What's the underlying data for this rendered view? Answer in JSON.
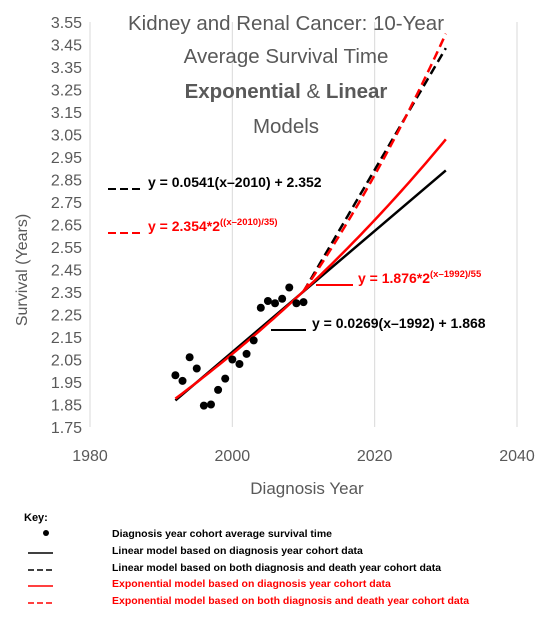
{
  "chart_data": {
    "type": "scatter",
    "title_lines": [
      "Kidney and Renal Cancer: 10-Year",
      "Average Survival Time"
    ],
    "subtitle_parts": {
      "exponential": "Exponential",
      "amp": " & ",
      "linear": "Linear"
    },
    "subtitle_models": "Models",
    "xlabel": "Diagnosis Year",
    "ylabel": "Survival (Years)",
    "xlim": [
      1980,
      2040
    ],
    "ylim": [
      1.75,
      3.55
    ],
    "x_ticks": [
      1980,
      2000,
      2020,
      2040
    ],
    "y_ticks": [
      "1.75",
      "1.85",
      "1.95",
      "2.05",
      "2.15",
      "2.25",
      "2.35",
      "2.45",
      "2.55",
      "2.65",
      "2.75",
      "2.85",
      "2.95",
      "3.05",
      "3.15",
      "3.25",
      "3.35",
      "3.45",
      "3.55"
    ],
    "grid": "vertical",
    "points": [
      {
        "x": 1992,
        "y": 1.98
      },
      {
        "x": 1993,
        "y": 1.955
      },
      {
        "x": 1994,
        "y": 2.06
      },
      {
        "x": 1995,
        "y": 2.01
      },
      {
        "x": 1996,
        "y": 1.845
      },
      {
        "x": 1997,
        "y": 1.85
      },
      {
        "x": 1998,
        "y": 1.915
      },
      {
        "x": 1999,
        "y": 1.965
      },
      {
        "x": 2000,
        "y": 2.05
      },
      {
        "x": 2001,
        "y": 2.03
      },
      {
        "x": 2002,
        "y": 2.075
      },
      {
        "x": 2003,
        "y": 2.135
      },
      {
        "x": 2004,
        "y": 2.28
      },
      {
        "x": 2005,
        "y": 2.31
      },
      {
        "x": 2006,
        "y": 2.3
      },
      {
        "x": 2007,
        "y": 2.32
      },
      {
        "x": 2008,
        "y": 2.37
      },
      {
        "x": 2009,
        "y": 2.3
      },
      {
        "x": 2010,
        "y": 2.305
      }
    ],
    "series": [
      {
        "name": "Linear model based on diagnosis year cohort data",
        "kind": "linear",
        "a": 0.0269,
        "x0": 1992,
        "b": 1.868,
        "x_range": [
          1992,
          2030
        ],
        "color": "#000000",
        "dash": false
      },
      {
        "name": "Linear model based on both diagnosis and death year cohort data",
        "kind": "linear",
        "a": 0.0541,
        "x0": 2010,
        "b": 2.352,
        "x_range": [
          2010,
          2030
        ],
        "color": "#000000",
        "dash": true
      },
      {
        "name": "Exponential model based on diagnosis year cohort data",
        "kind": "exp",
        "c": 1.876,
        "x0": 1992,
        "d": 55,
        "x_range": [
          1992,
          2030
        ],
        "color": "#ff0000",
        "dash": false
      },
      {
        "name": "Exponential model based on both diagnosis and death year cohort data",
        "kind": "exp",
        "c": 2.354,
        "x0": 2010,
        "d": 35,
        "x_range": [
          2010,
          2030
        ],
        "color": "#ff0000",
        "dash": true
      }
    ],
    "annotations": [
      {
        "base": "y = 0.0541(x–2010) + 2.352",
        "sup": "",
        "color": "#000000",
        "dash": true
      },
      {
        "base": "y = 2.354*2",
        "sup": "((x–2010)/35)",
        "color": "#ff0000",
        "dash": true
      },
      {
        "base": "y = 1.876*2",
        "sup": "(x–1992)/55",
        "color": "#ff0000",
        "dash": false
      },
      {
        "base": "y = 0.0269(x–1992) + 1.868",
        "sup": "",
        "color": "#000000",
        "dash": false
      }
    ]
  },
  "key": {
    "title": "Key:",
    "items": [
      {
        "label": "Diagnosis year cohort average survival time",
        "symbol": "dot",
        "color": "#000000"
      },
      {
        "label": "Linear model based on diagnosis year cohort data",
        "symbol": "solid",
        "color": "#000000"
      },
      {
        "label": "Linear model based on both diagnosis and death year cohort data",
        "symbol": "dash",
        "color": "#000000"
      },
      {
        "label": "Exponential model based on diagnosis year cohort data",
        "symbol": "solid",
        "color": "#ff0000"
      },
      {
        "label": "Exponential model based on both diagnosis and death year cohort data",
        "symbol": "dash",
        "color": "#ff0000"
      }
    ]
  }
}
